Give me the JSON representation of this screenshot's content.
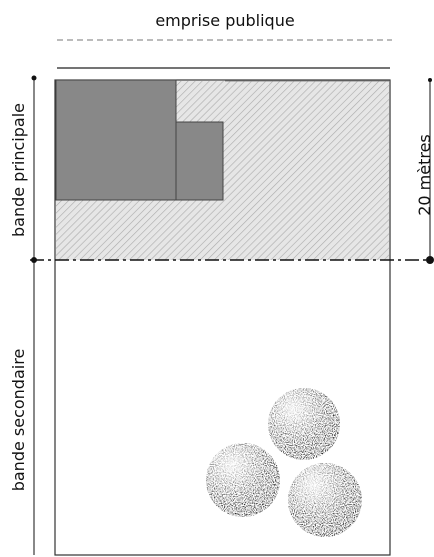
{
  "header": {
    "title": "emprise publique"
  },
  "labels": {
    "principale": "bande principale",
    "secondaire": "bande secondaire",
    "distance": "20 mètres"
  }
}
